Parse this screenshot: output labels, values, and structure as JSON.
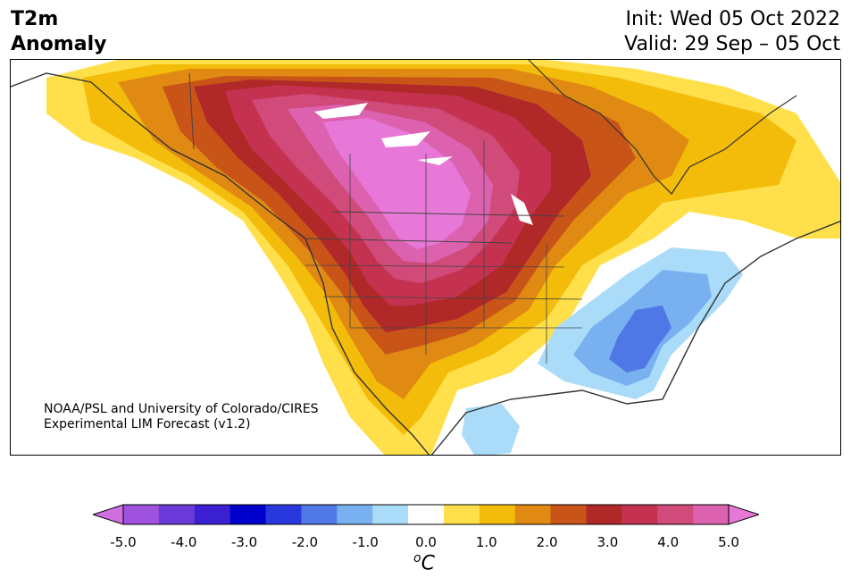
{
  "header": {
    "title_line1": "T2m",
    "title_line2": "Anomaly",
    "init": "Init: Wed 05 Oct 2022",
    "valid": "Valid: 29 Sep – 05 Oct"
  },
  "credit": {
    "line1": "NOAA/PSL and University of Colorado/CIRES",
    "line2": "Experimental LIM Forecast (v1.2)"
  },
  "colorbar": {
    "levels": [
      -5.0,
      -4.5,
      -4.0,
      -3.5,
      -3.0,
      -2.5,
      -2.0,
      -1.5,
      -1.0,
      -0.5,
      0.5,
      1.0,
      1.5,
      2.0,
      2.5,
      3.0,
      3.5,
      4.0,
      4.5,
      5.0
    ],
    "colors": [
      "#d070e0",
      "#9e52de",
      "#6b3ad8",
      "#3a20d0",
      "#0000cc",
      "#2838dc",
      "#4f78e6",
      "#78b0f0",
      "#aadcfa",
      "#ffffff",
      "#ffe04a",
      "#f4bc0a",
      "#e08a14",
      "#c85418",
      "#b02828",
      "#c43250",
      "#d04a7a",
      "#dc62b0",
      "#e878d8"
    ],
    "tick_labels": [
      "-5.0",
      "-4.0",
      "-3.0",
      "-2.0",
      "-1.0",
      "0.0",
      "1.0",
      "2.0",
      "3.0",
      "4.0",
      "5.0"
    ],
    "unit_base": "C",
    "unit_sup": "o"
  },
  "legend_colors": {
    "warm_core": "#e878d8",
    "cold_core": "#4f78e6",
    "coastline": "#333333"
  }
}
